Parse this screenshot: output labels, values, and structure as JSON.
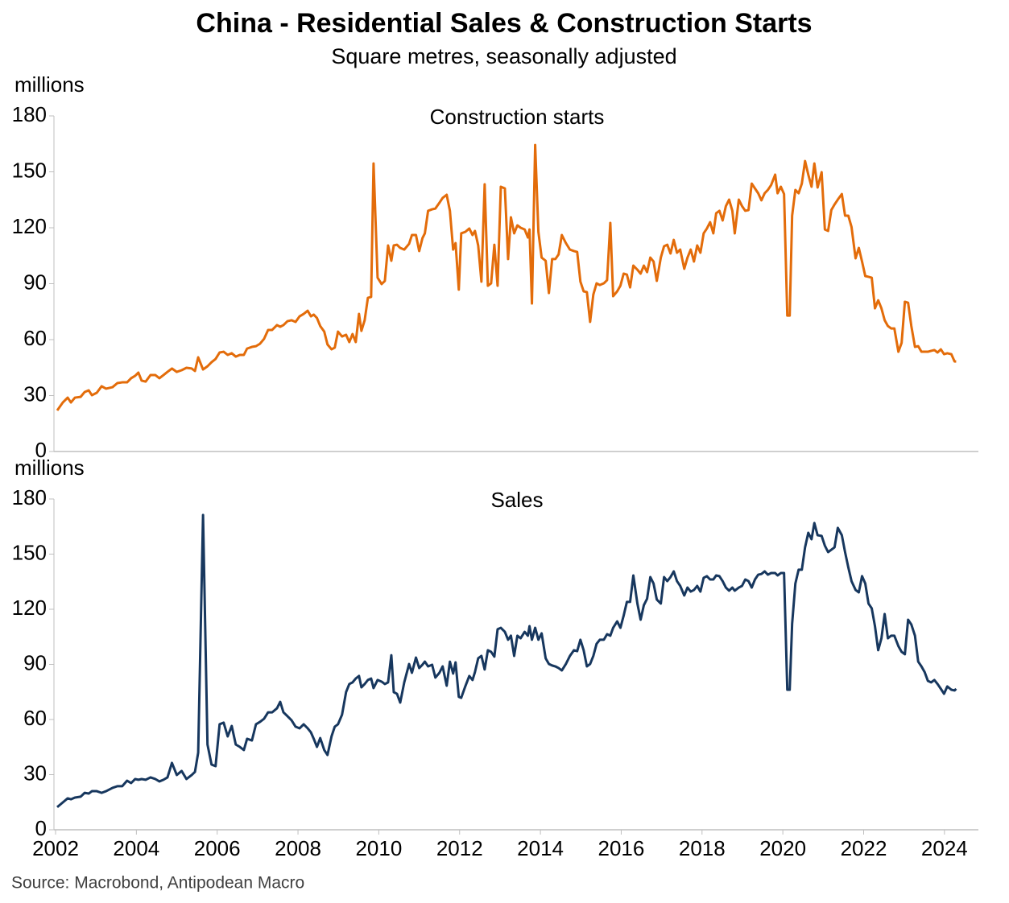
{
  "title": "China - Residential Sales & Construction Starts",
  "subtitle": "Square metres, seasonally adjusted",
  "source": "Source: Macrobond, Antipodean Macro",
  "chart_data": [
    {
      "type": "line",
      "title": "Construction starts",
      "y_label": "millions",
      "color": "#e36c0a",
      "xlim": [
        2002,
        2024.84
      ],
      "ylim": [
        0,
        180
      ],
      "yticks": [
        0,
        30,
        60,
        90,
        120,
        150,
        180
      ],
      "x": [
        2002.04,
        2002.18,
        2002.3,
        2002.38,
        2002.48,
        2002.62,
        2002.72,
        2002.82,
        2002.9,
        2003.02,
        2003.14,
        2003.25,
        2003.41,
        2003.53,
        2003.65,
        2003.77,
        2003.87,
        2003.97,
        2004.05,
        2004.13,
        2004.23,
        2004.35,
        2004.47,
        2004.57,
        2004.67,
        2004.77,
        2004.88,
        2005.0,
        2005.12,
        2005.24,
        2005.37,
        2005.45,
        2005.53,
        2005.65,
        2005.76,
        2005.86,
        2005.96,
        2006.06,
        2006.16,
        2006.26,
        2006.36,
        2006.46,
        2006.56,
        2006.66,
        2006.74,
        2006.86,
        2006.96,
        2007.06,
        2007.16,
        2007.26,
        2007.36,
        2007.48,
        2007.56,
        2007.64,
        2007.74,
        2007.84,
        2007.94,
        2008.04,
        2008.14,
        2008.24,
        2008.32,
        2008.39,
        2008.47,
        2008.55,
        2008.65,
        2008.73,
        2008.83,
        2008.91,
        2008.99,
        2009.09,
        2009.19,
        2009.27,
        2009.35,
        2009.43,
        2009.51,
        2009.57,
        2009.65,
        2009.73,
        2009.81,
        2009.87,
        2009.97,
        2010.07,
        2010.15,
        2010.23,
        2010.31,
        2010.37,
        2010.45,
        2010.53,
        2010.63,
        2010.75,
        2010.82,
        2010.92,
        2011.0,
        2011.08,
        2011.14,
        2011.22,
        2011.32,
        2011.4,
        2011.5,
        2011.58,
        2011.68,
        2011.76,
        2011.84,
        2011.9,
        2011.98,
        2012.04,
        2012.14,
        2012.24,
        2012.32,
        2012.38,
        2012.46,
        2012.54,
        2012.62,
        2012.7,
        2012.78,
        2012.86,
        2012.94,
        2013.02,
        2013.12,
        2013.2,
        2013.27,
        2013.35,
        2013.43,
        2013.51,
        2013.61,
        2013.69,
        2013.73,
        2013.79,
        2013.87,
        2013.95,
        2014.03,
        2014.13,
        2014.21,
        2014.29,
        2014.37,
        2014.45,
        2014.53,
        2014.63,
        2014.73,
        2014.83,
        2014.91,
        2014.99,
        2015.07,
        2015.15,
        2015.23,
        2015.31,
        2015.39,
        2015.47,
        2015.57,
        2015.65,
        2015.73,
        2015.8,
        2015.9,
        2015.98,
        2016.06,
        2016.14,
        2016.22,
        2016.3,
        2016.4,
        2016.48,
        2016.56,
        2016.64,
        2016.72,
        2016.8,
        2016.88,
        2016.98,
        2017.06,
        2017.14,
        2017.22,
        2017.3,
        2017.38,
        2017.46,
        2017.56,
        2017.64,
        2017.72,
        2017.8,
        2017.88,
        2017.96,
        2018.04,
        2018.12,
        2018.2,
        2018.28,
        2018.35,
        2018.43,
        2018.51,
        2018.59,
        2018.67,
        2018.75,
        2018.81,
        2018.91,
        2018.99,
        2019.07,
        2019.15,
        2019.23,
        2019.31,
        2019.39,
        2019.47,
        2019.55,
        2019.63,
        2019.71,
        2019.81,
        2019.87,
        2019.95,
        2020.03,
        2020.11,
        2020.17,
        2020.23,
        2020.31,
        2020.39,
        2020.47,
        2020.55,
        2020.63,
        2020.71,
        2020.78,
        2020.86,
        2020.96,
        2021.04,
        2021.12,
        2021.2,
        2021.28,
        2021.36,
        2021.46,
        2021.54,
        2021.62,
        2021.7,
        2021.8,
        2021.88,
        2021.96,
        2022.04,
        2022.12,
        2022.2,
        2022.28,
        2022.36,
        2022.44,
        2022.52,
        2022.6,
        2022.68,
        2022.76,
        2022.86,
        2022.94,
        2023.02,
        2023.1,
        2023.18,
        2023.27,
        2023.35,
        2023.43,
        2023.51,
        2023.59,
        2023.67,
        2023.75,
        2023.83,
        2023.91,
        2023.99,
        2024.07,
        2024.17,
        2024.25,
        2024.29
      ],
      "values": [
        22.0,
        26.3,
        28.9,
        26.3,
        28.9,
        29.3,
        31.9,
        32.8,
        30.2,
        31.5,
        35.0,
        33.7,
        34.5,
        36.7,
        37.1,
        37.1,
        39.3,
        40.6,
        42.3,
        38.0,
        37.5,
        41.0,
        41.0,
        39.3,
        41.0,
        42.7,
        44.5,
        42.7,
        43.6,
        44.9,
        44.5,
        43.2,
        50.5,
        44.0,
        45.7,
        47.9,
        49.6,
        53.1,
        53.5,
        51.8,
        52.7,
        50.9,
        51.8,
        51.8,
        55.2,
        56.1,
        56.5,
        57.8,
        60.4,
        65.2,
        65.2,
        67.8,
        66.9,
        67.8,
        69.9,
        70.4,
        69.5,
        72.5,
        73.8,
        75.5,
        72.5,
        73.4,
        71.6,
        67.3,
        64.3,
        57.4,
        54.8,
        55.7,
        64.3,
        61.7,
        62.6,
        58.7,
        63.0,
        58.7,
        73.8,
        64.7,
        70.4,
        82.4,
        82.9,
        154.5,
        93.2,
        89.8,
        91.5,
        110.5,
        102.3,
        110.5,
        110.9,
        109.2,
        108.3,
        111.4,
        116.1,
        116.1,
        107.5,
        114.4,
        117.0,
        129.1,
        129.9,
        130.3,
        133.4,
        136.0,
        137.7,
        129.1,
        108.3,
        111.8,
        86.8,
        117.0,
        117.8,
        119.6,
        116.1,
        118.3,
        110.5,
        91.1,
        143.3,
        88.9,
        90.2,
        110.9,
        88.9,
        142.0,
        141.1,
        103.2,
        125.6,
        117.0,
        121.3,
        120.0,
        119.1,
        114.8,
        119.1,
        79.4,
        164.4,
        117.8,
        104.0,
        102.3,
        85.0,
        103.2,
        103.2,
        105.7,
        116.1,
        111.8,
        108.3,
        107.5,
        107.0,
        91.1,
        85.9,
        85.5,
        69.5,
        84.2,
        90.2,
        89.3,
        90.2,
        91.9,
        122.6,
        83.3,
        85.9,
        88.9,
        95.4,
        94.9,
        88.0,
        99.7,
        97.5,
        95.4,
        99.7,
        96.2,
        104.0,
        101.9,
        91.5,
        104.0,
        110.1,
        110.9,
        106.2,
        113.5,
        106.6,
        108.3,
        98.0,
        104.0,
        108.3,
        101.9,
        110.5,
        106.6,
        117.0,
        119.6,
        123.0,
        117.0,
        127.8,
        129.1,
        123.9,
        131.6,
        135.1,
        129.1,
        117.0,
        135.1,
        131.6,
        129.1,
        129.5,
        143.7,
        141.1,
        138.5,
        134.7,
        138.5,
        140.3,
        142.9,
        148.5,
        138.5,
        142.0,
        138.1,
        72.9,
        72.9,
        126.5,
        140.3,
        138.5,
        143.7,
        155.8,
        148.5,
        142.0,
        154.5,
        141.6,
        149.8,
        119.1,
        118.3,
        129.5,
        132.5,
        135.1,
        138.1,
        126.5,
        126.5,
        120.4,
        103.6,
        109.2,
        101.9,
        94.1,
        93.7,
        93.2,
        76.8,
        81.1,
        76.8,
        70.4,
        67.3,
        66.0,
        66.0,
        53.5,
        58.3,
        80.3,
        79.8,
        67.3,
        56.1,
        56.5,
        53.5,
        53.5,
        53.5,
        54.0,
        54.4,
        53.1,
        54.8,
        52.2,
        52.7,
        52.2,
        48.3,
        48.3
      ]
    },
    {
      "type": "line",
      "title": "Sales",
      "y_label": "millions",
      "color": "#17375e",
      "xlim": [
        2002,
        2024.84
      ],
      "xticks": [
        2002,
        2004,
        2006,
        2008,
        2010,
        2012,
        2014,
        2016,
        2018,
        2020,
        2022,
        2024
      ],
      "ylim": [
        0,
        180
      ],
      "yticks": [
        0,
        30,
        60,
        90,
        120,
        150,
        180
      ],
      "x": [
        2002.04,
        2002.18,
        2002.3,
        2002.38,
        2002.48,
        2002.62,
        2002.72,
        2002.82,
        2002.9,
        2003.02,
        2003.14,
        2003.25,
        2003.41,
        2003.53,
        2003.65,
        2003.77,
        2003.87,
        2003.97,
        2004.05,
        2004.13,
        2004.23,
        2004.35,
        2004.47,
        2004.57,
        2004.67,
        2004.77,
        2004.88,
        2005.0,
        2005.12,
        2005.24,
        2005.37,
        2005.45,
        2005.53,
        2005.65,
        2005.76,
        2005.86,
        2005.96,
        2006.06,
        2006.16,
        2006.26,
        2006.36,
        2006.46,
        2006.56,
        2006.66,
        2006.74,
        2006.86,
        2006.96,
        2007.06,
        2007.16,
        2007.26,
        2007.36,
        2007.48,
        2007.56,
        2007.64,
        2007.74,
        2007.84,
        2007.94,
        2008.04,
        2008.14,
        2008.24,
        2008.32,
        2008.39,
        2008.47,
        2008.55,
        2008.65,
        2008.73,
        2008.83,
        2008.91,
        2008.99,
        2009.09,
        2009.19,
        2009.27,
        2009.35,
        2009.43,
        2009.51,
        2009.57,
        2009.65,
        2009.73,
        2009.81,
        2009.87,
        2009.97,
        2010.07,
        2010.15,
        2010.23,
        2010.31,
        2010.37,
        2010.45,
        2010.53,
        2010.63,
        2010.75,
        2010.82,
        2010.92,
        2011.0,
        2011.08,
        2011.14,
        2011.22,
        2011.32,
        2011.4,
        2011.5,
        2011.58,
        2011.68,
        2011.76,
        2011.84,
        2011.9,
        2011.98,
        2012.04,
        2012.14,
        2012.24,
        2012.32,
        2012.38,
        2012.46,
        2012.54,
        2012.62,
        2012.7,
        2012.78,
        2012.86,
        2012.94,
        2013.02,
        2013.12,
        2013.2,
        2013.27,
        2013.35,
        2013.43,
        2013.51,
        2013.61,
        2013.69,
        2013.73,
        2013.79,
        2013.87,
        2013.95,
        2014.03,
        2014.13,
        2014.21,
        2014.29,
        2014.37,
        2014.45,
        2014.53,
        2014.63,
        2014.73,
        2014.83,
        2014.91,
        2014.99,
        2015.07,
        2015.15,
        2015.23,
        2015.31,
        2015.39,
        2015.47,
        2015.57,
        2015.65,
        2015.73,
        2015.8,
        2015.9,
        2015.98,
        2016.06,
        2016.14,
        2016.22,
        2016.3,
        2016.4,
        2016.48,
        2016.56,
        2016.64,
        2016.72,
        2016.8,
        2016.88,
        2016.98,
        2017.06,
        2017.14,
        2017.22,
        2017.3,
        2017.38,
        2017.46,
        2017.56,
        2017.64,
        2017.72,
        2017.8,
        2017.88,
        2017.96,
        2018.04,
        2018.12,
        2018.2,
        2018.28,
        2018.35,
        2018.43,
        2018.51,
        2018.59,
        2018.67,
        2018.75,
        2018.81,
        2018.91,
        2018.99,
        2019.07,
        2019.15,
        2019.23,
        2019.31,
        2019.39,
        2019.47,
        2019.55,
        2019.63,
        2019.71,
        2019.81,
        2019.87,
        2019.95,
        2020.03,
        2020.11,
        2020.17,
        2020.23,
        2020.31,
        2020.39,
        2020.47,
        2020.55,
        2020.63,
        2020.71,
        2020.78,
        2020.86,
        2020.96,
        2021.04,
        2021.12,
        2021.2,
        2021.28,
        2021.36,
        2021.46,
        2021.54,
        2021.62,
        2021.7,
        2021.8,
        2021.88,
        2021.96,
        2022.04,
        2022.12,
        2022.2,
        2022.28,
        2022.36,
        2022.44,
        2022.52,
        2022.6,
        2022.68,
        2022.76,
        2022.86,
        2022.94,
        2023.02,
        2023.1,
        2023.18,
        2023.27,
        2023.35,
        2023.43,
        2023.51,
        2023.59,
        2023.67,
        2023.75,
        2023.83,
        2023.91,
        2023.99,
        2024.07,
        2024.17,
        2024.25,
        2024.29
      ],
      "values": [
        12.3,
        14.9,
        17.1,
        16.6,
        17.5,
        18.0,
        20.1,
        19.7,
        21.0,
        21.0,
        20.1,
        21.0,
        22.8,
        23.7,
        23.7,
        26.7,
        25.4,
        27.6,
        27.2,
        27.6,
        27.2,
        28.5,
        27.6,
        26.3,
        27.2,
        28.5,
        36.4,
        29.8,
        32.0,
        27.6,
        29.8,
        31.5,
        42.0,
        171.3,
        46.4,
        35.5,
        34.6,
        57.4,
        58.3,
        50.8,
        56.5,
        46.4,
        45.1,
        43.4,
        49.5,
        48.6,
        57.4,
        58.7,
        60.4,
        63.9,
        63.9,
        66.1,
        69.6,
        63.9,
        61.8,
        59.6,
        56.1,
        55.2,
        57.4,
        55.2,
        53.0,
        49.5,
        45.1,
        49.9,
        43.4,
        40.7,
        50.8,
        56.1,
        57.4,
        62.6,
        74.9,
        79.3,
        80.2,
        82.3,
        83.7,
        77.5,
        79.3,
        81.5,
        82.3,
        77.1,
        81.5,
        80.6,
        79.3,
        80.2,
        95.0,
        74.9,
        74.0,
        69.2,
        80.2,
        90.2,
        85.4,
        93.7,
        88.0,
        89.8,
        91.5,
        88.9,
        89.8,
        82.8,
        85.4,
        88.9,
        78.4,
        91.5,
        85.0,
        91.1,
        72.3,
        71.8,
        78.0,
        83.7,
        81.5,
        85.8,
        93.3,
        94.6,
        87.2,
        97.7,
        96.8,
        94.2,
        109.1,
        109.9,
        107.7,
        103.4,
        105.6,
        94.6,
        105.6,
        104.2,
        107.7,
        105.6,
        110.8,
        103.4,
        109.9,
        103.4,
        106.9,
        93.3,
        90.2,
        89.4,
        88.9,
        88.0,
        86.7,
        90.2,
        94.6,
        97.7,
        97.2,
        103.4,
        97.7,
        88.9,
        90.2,
        94.6,
        101.2,
        103.4,
        103.4,
        106.4,
        105.6,
        109.9,
        113.4,
        109.9,
        116.5,
        124.0,
        124.0,
        138.4,
        123.1,
        114.3,
        122.2,
        125.7,
        137.5,
        134.0,
        125.3,
        123.1,
        137.5,
        135.3,
        137.5,
        140.6,
        135.3,
        132.7,
        127.5,
        131.8,
        129.6,
        130.5,
        132.7,
        129.6,
        137.1,
        138.0,
        136.2,
        136.2,
        138.4,
        138.0,
        135.3,
        131.8,
        130.1,
        131.8,
        130.1,
        131.8,
        132.7,
        136.2,
        135.3,
        131.8,
        136.2,
        138.8,
        139.2,
        140.6,
        138.8,
        139.7,
        139.7,
        138.4,
        139.7,
        139.7,
        76.2,
        76.2,
        112.1,
        134.0,
        141.5,
        141.5,
        153.7,
        161.6,
        158.1,
        166.9,
        160.3,
        159.9,
        154.6,
        151.1,
        152.4,
        153.7,
        164.3,
        160.3,
        151.1,
        142.8,
        135.3,
        130.5,
        129.2,
        138.0,
        134.0,
        123.1,
        120.5,
        110.8,
        97.7,
        104.2,
        117.4,
        104.2,
        105.6,
        105.6,
        99.9,
        96.8,
        95.5,
        114.3,
        111.7,
        105.6,
        91.5,
        88.9,
        85.8,
        81.0,
        80.2,
        81.5,
        79.3,
        76.7,
        74.0,
        78.0,
        76.2,
        75.8,
        76.7
      ]
    }
  ]
}
